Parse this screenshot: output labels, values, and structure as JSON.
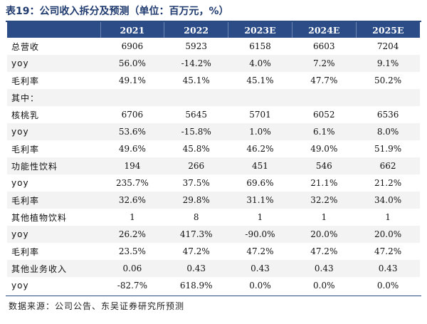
{
  "title": "表19：公司收入拆分及预测（单位：百万元，%）",
  "headers": [
    "",
    "2021",
    "2022",
    "2023E",
    "2024E",
    "2025E"
  ],
  "rows": [
    {
      "label": "总营收",
      "values": [
        "6906",
        "5923",
        "6158",
        "6603",
        "7204"
      ]
    },
    {
      "label": "yoy",
      "values": [
        "56.0%",
        "-14.2%",
        "4.0%",
        "7.2%",
        "9.1%"
      ]
    },
    {
      "label": "毛利率",
      "values": [
        "49.1%",
        "45.1%",
        "45.1%",
        "47.7%",
        "50.2%"
      ]
    },
    {
      "label": "其中：",
      "values": [
        "",
        "",
        "",
        "",
        ""
      ]
    },
    {
      "label": "核桃乳",
      "values": [
        "6706",
        "5645",
        "5701",
        "6052",
        "6536"
      ]
    },
    {
      "label": "yoy",
      "values": [
        "53.6%",
        "-15.8%",
        "1.0%",
        "6.1%",
        "8.0%"
      ]
    },
    {
      "label": "毛利率",
      "values": [
        "49.6%",
        "45.8%",
        "46.2%",
        "49.0%",
        "51.9%"
      ]
    },
    {
      "label": "功能性饮料",
      "values": [
        "194",
        "266",
        "451",
        "546",
        "662"
      ]
    },
    {
      "label": "yoy",
      "values": [
        "235.7%",
        "37.5%",
        "69.6%",
        "21.1%",
        "21.2%"
      ]
    },
    {
      "label": "毛利率",
      "values": [
        "32.6%",
        "29.8%",
        "31.1%",
        "32.2%",
        "34.0%"
      ]
    },
    {
      "label": "其他植物饮料",
      "values": [
        "1",
        "8",
        "1",
        "1",
        "1"
      ]
    },
    {
      "label": "yoy",
      "values": [
        "26.2%",
        "417.3%",
        "-90.0%",
        "20.0%",
        "20.0%"
      ]
    },
    {
      "label": "毛利率",
      "values": [
        "23.5%",
        "47.2%",
        "47.2%",
        "47.2%",
        "47.2%"
      ]
    },
    {
      "label": "其他业务收入",
      "values": [
        "0.06",
        "0.43",
        "0.43",
        "0.43",
        "0.43"
      ]
    },
    {
      "label": "yoy",
      "values": [
        "-82.7%",
        "618.9%",
        "0.0%",
        "0.0%",
        "0.0%"
      ]
    }
  ],
  "source": "数据来源：公司公告、东吴证券研究所预测",
  "colors": {
    "header_bg": "#2b4c86",
    "title": "#1f3a6e",
    "row_shade": "#f3f3f3"
  }
}
